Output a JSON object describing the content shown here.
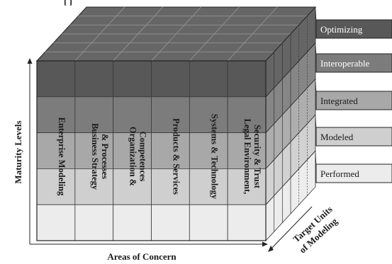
{
  "top_text": "[ ]",
  "maturity_levels": [
    {
      "label": "Optimizing",
      "fill": "#585858",
      "text_color": "#ffffff"
    },
    {
      "label": "Interoperable",
      "fill": "#7c7c7c",
      "text_color": "#ffffff"
    },
    {
      "label": "Integrated",
      "fill": "#a8a8a8",
      "text_color": "#1a1a1a"
    },
    {
      "label": "Modeled",
      "fill": "#cfcfcf",
      "text_color": "#1a1a1a"
    },
    {
      "label": "Performed",
      "fill": "#ececec",
      "text_color": "#1a1a1a"
    }
  ],
  "areas_of_concern": [
    {
      "label": "Enterprise Modeling"
    },
    {
      "label": "Business Strategy & Processes",
      "lines": [
        "Business Strategy",
        "& Processes"
      ]
    },
    {
      "label": "Organization & Competences",
      "lines": [
        "Organization &",
        "Competences"
      ]
    },
    {
      "label": "Products & Services"
    },
    {
      "label": "Systems & Technology"
    },
    {
      "label": "Legal Environment, Security & Trust",
      "lines": [
        "Legal Environment,",
        "Security & Trust"
      ]
    }
  ],
  "axes": {
    "y_label": "Maturity Levels",
    "x_label": "Areas of Concern",
    "z_label_lines": [
      "Target Units",
      "of Modeling"
    ]
  },
  "colors": {
    "top_face": "#666666",
    "top_grid": "#8e8e8e",
    "front_grid": "#3a3a3a",
    "outline": "#222222"
  }
}
